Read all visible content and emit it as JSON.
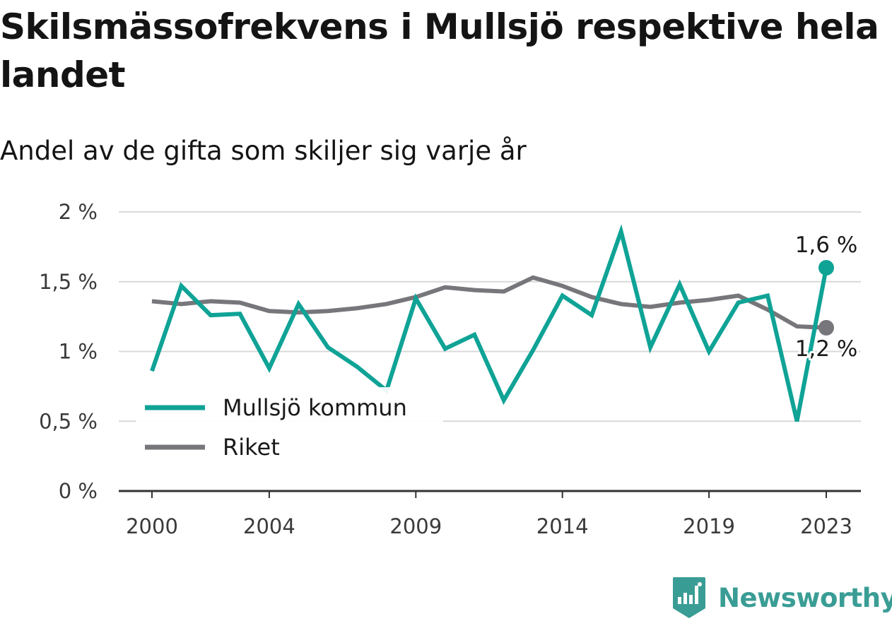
{
  "title": "Skilsmässofrekvens i Mullsjö respektive hela landet",
  "subtitle": "Andel av de gifta som skiljer sig varje år",
  "brand": {
    "name": "Newsworthy",
    "icon": "newsworthy-logo-icon",
    "color": "#3a9d95"
  },
  "chart_data": {
    "type": "line",
    "title": "Skilsmässofrekvens i Mullsjö respektive hela landet",
    "subtitle": "Andel av de gifta som skiljer sig varje år",
    "xlabel": "",
    "ylabel": "",
    "x": [
      2000,
      2001,
      2002,
      2003,
      2004,
      2005,
      2006,
      2007,
      2008,
      2009,
      2010,
      2011,
      2012,
      2013,
      2014,
      2015,
      2016,
      2017,
      2018,
      2019,
      2020,
      2021,
      2022,
      2023
    ],
    "x_ticks": [
      2000,
      2004,
      2009,
      2014,
      2019,
      2023
    ],
    "x_tick_labels": [
      "2000",
      "2004",
      "2009",
      "2014",
      "2019",
      "2023"
    ],
    "ylim": [
      0,
      2
    ],
    "y_ticks": [
      0,
      0.5,
      1,
      1.5,
      2
    ],
    "y_tick_labels": [
      "0 %",
      "0,5 %",
      "1 %",
      "1,5 %",
      "2 %"
    ],
    "grid": true,
    "legend_position": "bottom-left",
    "series": [
      {
        "name": "Mullsjö kommun",
        "color": "#0fa396",
        "values": [
          0.86,
          1.47,
          1.26,
          1.27,
          0.88,
          1.34,
          1.03,
          0.89,
          0.72,
          1.38,
          1.02,
          1.12,
          0.65,
          1.01,
          1.4,
          1.26,
          1.86,
          1.03,
          1.48,
          1.0,
          1.35,
          1.4,
          0.5,
          1.6
        ],
        "end_label": "1,6 %"
      },
      {
        "name": "Riket",
        "color": "#77767b",
        "values": [
          1.36,
          1.34,
          1.36,
          1.35,
          1.29,
          1.28,
          1.29,
          1.31,
          1.34,
          1.39,
          1.46,
          1.44,
          1.43,
          1.53,
          1.47,
          1.39,
          1.34,
          1.32,
          1.35,
          1.37,
          1.4,
          1.3,
          1.18,
          1.17
        ],
        "end_label": "1,2 %"
      }
    ]
  }
}
